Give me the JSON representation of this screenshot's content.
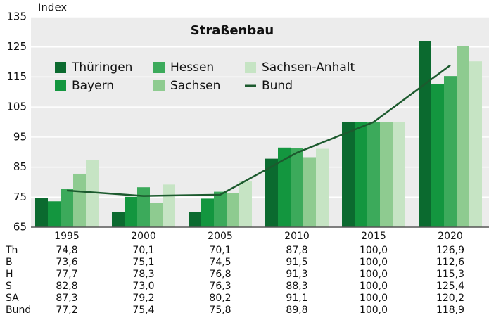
{
  "chart_data": {
    "type": "bar",
    "title": "Straßenbau",
    "y_label": "Index",
    "categories": [
      "1995",
      "2000",
      "2005",
      "2010",
      "2015",
      "2020"
    ],
    "series": [
      {
        "name": "Thüringen",
        "abbr": "Th",
        "color": "#0b6a2f",
        "values": [
          74.8,
          70.1,
          70.1,
          87.8,
          100.0,
          126.9
        ],
        "value_labels": [
          "74,8",
          "70,1",
          "70,1",
          "87,8",
          "100,0",
          "126,9"
        ]
      },
      {
        "name": "Bayern",
        "abbr": "B",
        "color": "#13963f",
        "values": [
          73.6,
          75.1,
          74.5,
          91.5,
          100.0,
          112.6
        ],
        "value_labels": [
          "73,6",
          "75,1",
          "74,5",
          "91,5",
          "100,0",
          "112,6"
        ]
      },
      {
        "name": "Hessen",
        "abbr": "H",
        "color": "#3caa5b",
        "values": [
          77.7,
          78.3,
          76.8,
          91.3,
          100.0,
          115.3
        ],
        "value_labels": [
          "77,7",
          "78,3",
          "76,8",
          "91,3",
          "100,0",
          "115,3"
        ]
      },
      {
        "name": "Sachsen",
        "abbr": "S",
        "color": "#8ecb90",
        "values": [
          82.8,
          73.0,
          76.3,
          88.3,
          100.0,
          125.4
        ],
        "value_labels": [
          "82,8",
          "73,0",
          "76,3",
          "88,3",
          "100,0",
          "125,4"
        ]
      },
      {
        "name": "Sachsen-Anhalt",
        "abbr": "SA",
        "color": "#c6e4c4",
        "values": [
          87.3,
          79.2,
          80.2,
          91.1,
          100.0,
          120.2
        ],
        "value_labels": [
          "87,3",
          "79,2",
          "80,2",
          "91,1",
          "100,0",
          "120,2"
        ]
      },
      {
        "name": "Bund",
        "abbr": "Bund",
        "type": "line",
        "color": "#1c5a2e",
        "values": [
          77.2,
          75.4,
          75.8,
          89.8,
          100.0,
          118.9
        ],
        "value_labels": [
          "77,2",
          "75,4",
          "75,8",
          "89,8",
          "100,0",
          "118,9"
        ]
      }
    ],
    "ylim": [
      65,
      135
    ],
    "yticks": [
      65,
      75,
      85,
      95,
      105,
      115,
      125,
      135
    ],
    "grid": true,
    "legend": "upper left"
  }
}
